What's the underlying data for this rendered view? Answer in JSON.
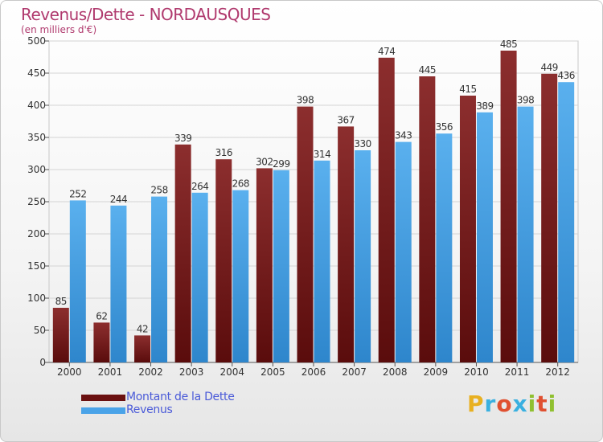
{
  "chart_data": {
    "type": "bar",
    "title": "Revenus/Dette - NORDAUSQUES",
    "subtitle": "(en milliers d'€)",
    "categories": [
      "2000",
      "2001",
      "2002",
      "2003",
      "2004",
      "2005",
      "2006",
      "2007",
      "2008",
      "2009",
      "2010",
      "2011",
      "2012"
    ],
    "series": [
      {
        "name": "Montant de la Dette",
        "color": "#7a1a1a",
        "values": [
          85,
          62,
          42,
          339,
          316,
          302,
          398,
          367,
          474,
          445,
          415,
          485,
          449
        ]
      },
      {
        "name": "Revenus",
        "color": "#4aa3e8",
        "values": [
          252,
          244,
          258,
          264,
          268,
          299,
          314,
          330,
          343,
          356,
          389,
          398,
          436
        ]
      }
    ],
    "ylim": [
      0,
      500
    ],
    "yticks": [
      "0",
      "50",
      "100",
      "150",
      "200",
      "250",
      "300",
      "350",
      "400",
      "450",
      "500"
    ],
    "grid": true,
    "legend_position": "bottom-left"
  },
  "logo": {
    "letters": [
      "P",
      "r",
      "o",
      "x",
      "i",
      "t",
      "i"
    ],
    "colors": [
      "#e8b020",
      "#3ab0e0",
      "#e05030",
      "#3ab0e0",
      "#90c030",
      "#e05030",
      "#90c030"
    ]
  }
}
